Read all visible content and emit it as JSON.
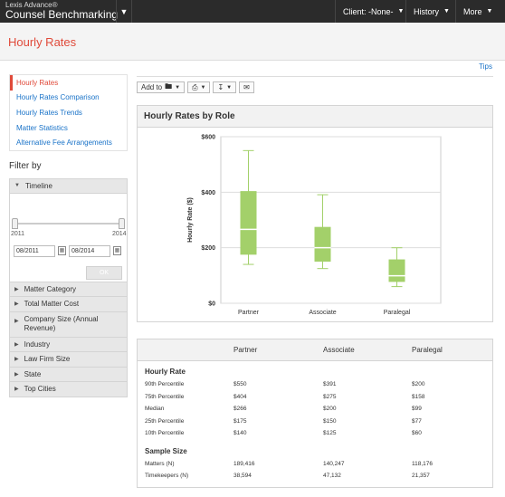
{
  "topbar": {
    "brand_sup": "Lexis Advance®",
    "brand_main": "Counsel Benchmarking",
    "client": "Client: -None-",
    "history": "History",
    "more": "More"
  },
  "page": {
    "title": "Hourly Rates",
    "tips": "Tips"
  },
  "sidenav": [
    {
      "label": "Hourly Rates",
      "active": true
    },
    {
      "label": "Hourly Rates Comparison"
    },
    {
      "label": "Hourly Rates Trends"
    },
    {
      "label": "Matter Statistics"
    },
    {
      "label": "Alternative Fee Arrangements"
    }
  ],
  "filters": {
    "heading": "Filter by",
    "timeline": {
      "label": "Timeline",
      "start_year": "2011",
      "end_year": "2014",
      "from_date": "08/2011",
      "to_date": "08/2014",
      "ok": "OK"
    },
    "groups": [
      "Matter Category",
      "Total Matter Cost",
      "Company Size (Annual Revenue)",
      "Industry",
      "Law Firm Size",
      "State",
      "Top Cities"
    ]
  },
  "toolbar": {
    "add_to": "Add to"
  },
  "chart_data": {
    "type": "boxplot",
    "title": "Hourly Rates by Role",
    "ylabel": "Hourly Rate ($)",
    "ylim": [
      0,
      600
    ],
    "yticks": [
      "$0",
      "$200",
      "$400",
      "$600"
    ],
    "categories": [
      "Partner",
      "Associate",
      "Paralegal"
    ],
    "boxes": [
      {
        "p10": 140,
        "p25": 175,
        "median": 266,
        "p75": 404,
        "p90": 550
      },
      {
        "p10": 125,
        "p25": 150,
        "median": 200,
        "p75": 275,
        "p90": 391
      },
      {
        "p10": 60,
        "p25": 77,
        "median": 99,
        "p75": 158,
        "p90": 200
      }
    ],
    "box_color": "#a3d06a",
    "grid": true
  },
  "table": {
    "columns": [
      "Partner",
      "Associate",
      "Paralegal"
    ],
    "sections": [
      {
        "title": "Hourly Rate",
        "rows": [
          {
            "label": "90th Percentile",
            "values": [
              "$550",
              "$391",
              "$200"
            ]
          },
          {
            "label": "75th Percentile",
            "values": [
              "$404",
              "$275",
              "$158"
            ]
          },
          {
            "label": "Median",
            "values": [
              "$266",
              "$200",
              "$99"
            ]
          },
          {
            "label": "25th Percentile",
            "values": [
              "$175",
              "$150",
              "$77"
            ]
          },
          {
            "label": "10th Percentile",
            "values": [
              "$140",
              "$125",
              "$60"
            ]
          }
        ]
      },
      {
        "title": "Sample Size",
        "rows": [
          {
            "label": "Matters (N)",
            "values": [
              "189,416",
              "140,247",
              "118,176"
            ]
          },
          {
            "label": "Timekeepers (N)",
            "values": [
              "38,594",
              "47,132",
              "21,357"
            ]
          }
        ]
      }
    ]
  }
}
